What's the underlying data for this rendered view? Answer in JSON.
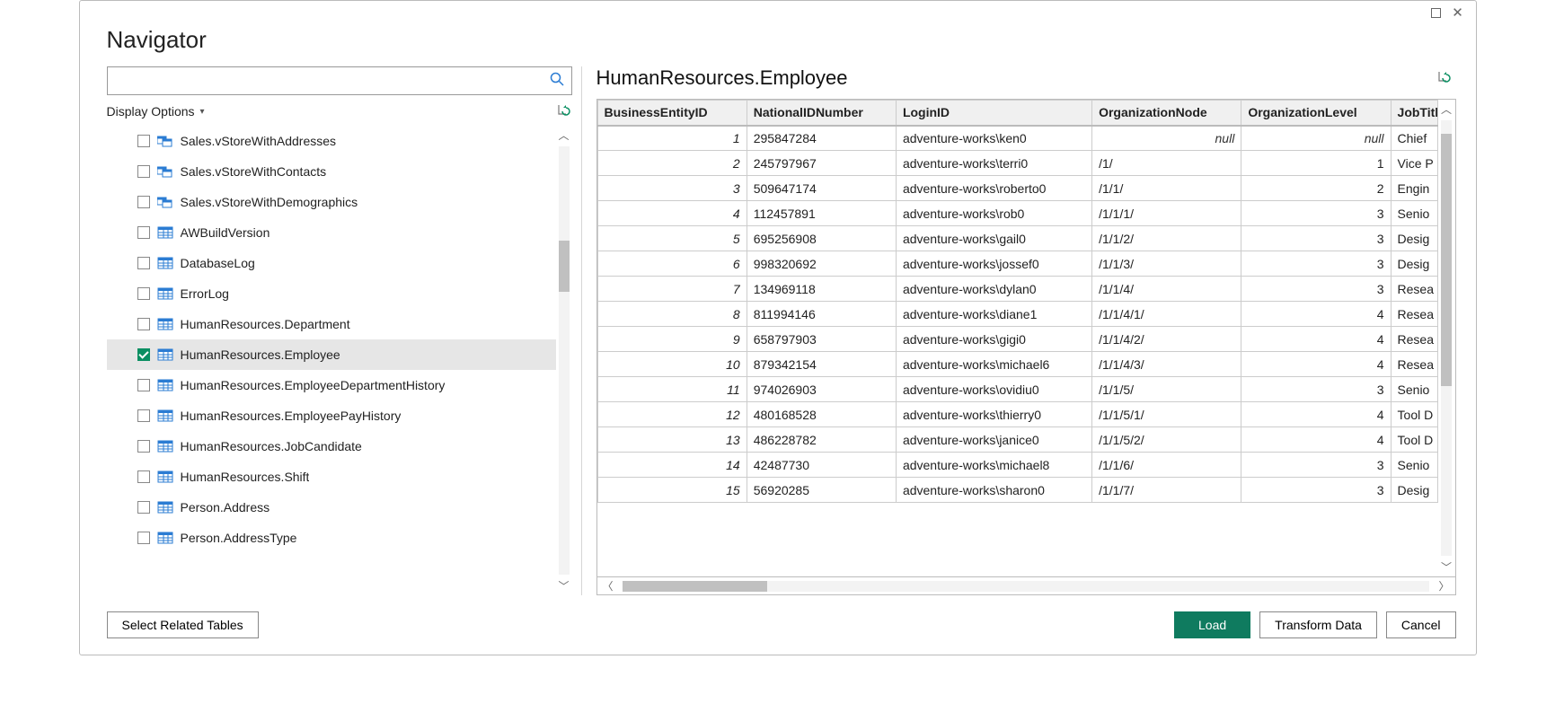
{
  "dialog": {
    "title": "Navigator"
  },
  "search": {
    "placeholder": ""
  },
  "displayOptions": {
    "label": "Display Options"
  },
  "tree": {
    "scroll": {
      "thumb_top_pct": 22,
      "thumb_height_pct": 12
    },
    "items": [
      {
        "label": "Sales.vStoreWithAddresses",
        "type": "view",
        "checked": false,
        "selected": false
      },
      {
        "label": "Sales.vStoreWithContacts",
        "type": "view",
        "checked": false,
        "selected": false
      },
      {
        "label": "Sales.vStoreWithDemographics",
        "type": "view",
        "checked": false,
        "selected": false
      },
      {
        "label": "AWBuildVersion",
        "type": "table",
        "checked": false,
        "selected": false
      },
      {
        "label": "DatabaseLog",
        "type": "table",
        "checked": false,
        "selected": false
      },
      {
        "label": "ErrorLog",
        "type": "table",
        "checked": false,
        "selected": false
      },
      {
        "label": "HumanResources.Department",
        "type": "table",
        "checked": false,
        "selected": false
      },
      {
        "label": "HumanResources.Employee",
        "type": "table",
        "checked": true,
        "selected": true
      },
      {
        "label": "HumanResources.EmployeeDepartmentHistory",
        "type": "table",
        "checked": false,
        "selected": false
      },
      {
        "label": "HumanResources.EmployeePayHistory",
        "type": "table",
        "checked": false,
        "selected": false
      },
      {
        "label": "HumanResources.JobCandidate",
        "type": "table",
        "checked": false,
        "selected": false
      },
      {
        "label": "HumanResources.Shift",
        "type": "table",
        "checked": false,
        "selected": false
      },
      {
        "label": "Person.Address",
        "type": "table",
        "checked": false,
        "selected": false
      },
      {
        "label": "Person.AddressType",
        "type": "table",
        "checked": false,
        "selected": false
      }
    ]
  },
  "preview": {
    "title": "HumanResources.Employee",
    "columns": [
      "BusinessEntityID",
      "NationalIDNumber",
      "LoginID",
      "OrganizationNode",
      "OrganizationLevel",
      "JobTitle"
    ],
    "rows": [
      {
        "BusinessEntityID": 1,
        "NationalIDNumber": "295847284",
        "LoginID": "adventure-works\\ken0",
        "OrganizationNode": "null",
        "OrganizationLevel": "null",
        "JobTitle": "Chief"
      },
      {
        "BusinessEntityID": 2,
        "NationalIDNumber": "245797967",
        "LoginID": "adventure-works\\terri0",
        "OrganizationNode": "/1/",
        "OrganizationLevel": 1,
        "JobTitle": "Vice P"
      },
      {
        "BusinessEntityID": 3,
        "NationalIDNumber": "509647174",
        "LoginID": "adventure-works\\roberto0",
        "OrganizationNode": "/1/1/",
        "OrganizationLevel": 2,
        "JobTitle": "Engin"
      },
      {
        "BusinessEntityID": 4,
        "NationalIDNumber": "112457891",
        "LoginID": "adventure-works\\rob0",
        "OrganizationNode": "/1/1/1/",
        "OrganizationLevel": 3,
        "JobTitle": "Senio"
      },
      {
        "BusinessEntityID": 5,
        "NationalIDNumber": "695256908",
        "LoginID": "adventure-works\\gail0",
        "OrganizationNode": "/1/1/2/",
        "OrganizationLevel": 3,
        "JobTitle": "Desig"
      },
      {
        "BusinessEntityID": 6,
        "NationalIDNumber": "998320692",
        "LoginID": "adventure-works\\jossef0",
        "OrganizationNode": "/1/1/3/",
        "OrganizationLevel": 3,
        "JobTitle": "Desig"
      },
      {
        "BusinessEntityID": 7,
        "NationalIDNumber": "134969118",
        "LoginID": "adventure-works\\dylan0",
        "OrganizationNode": "/1/1/4/",
        "OrganizationLevel": 3,
        "JobTitle": "Resea"
      },
      {
        "BusinessEntityID": 8,
        "NationalIDNumber": "811994146",
        "LoginID": "adventure-works\\diane1",
        "OrganizationNode": "/1/1/4/1/",
        "OrganizationLevel": 4,
        "JobTitle": "Resea"
      },
      {
        "BusinessEntityID": 9,
        "NationalIDNumber": "658797903",
        "LoginID": "adventure-works\\gigi0",
        "OrganizationNode": "/1/1/4/2/",
        "OrganizationLevel": 4,
        "JobTitle": "Resea"
      },
      {
        "BusinessEntityID": 10,
        "NationalIDNumber": "879342154",
        "LoginID": "adventure-works\\michael6",
        "OrganizationNode": "/1/1/4/3/",
        "OrganizationLevel": 4,
        "JobTitle": "Resea"
      },
      {
        "BusinessEntityID": 11,
        "NationalIDNumber": "974026903",
        "LoginID": "adventure-works\\ovidiu0",
        "OrganizationNode": "/1/1/5/",
        "OrganizationLevel": 3,
        "JobTitle": "Senio"
      },
      {
        "BusinessEntityID": 12,
        "NationalIDNumber": "480168528",
        "LoginID": "adventure-works\\thierry0",
        "OrganizationNode": "/1/1/5/1/",
        "OrganizationLevel": 4,
        "JobTitle": "Tool D"
      },
      {
        "BusinessEntityID": 13,
        "NationalIDNumber": "486228782",
        "LoginID": "adventure-works\\janice0",
        "OrganizationNode": "/1/1/5/2/",
        "OrganizationLevel": 4,
        "JobTitle": "Tool D"
      },
      {
        "BusinessEntityID": 14,
        "NationalIDNumber": "42487730",
        "LoginID": "adventure-works\\michael8",
        "OrganizationNode": "/1/1/6/",
        "OrganizationLevel": 3,
        "JobTitle": "Senio"
      },
      {
        "BusinessEntityID": 15,
        "NationalIDNumber": "56920285",
        "LoginID": "adventure-works\\sharon0",
        "OrganizationNode": "/1/1/7/",
        "OrganizationLevel": 3,
        "JobTitle": "Desig"
      }
    ],
    "vscroll": {
      "thumb_top_pct": 3,
      "thumb_height_pct": 58
    },
    "hscroll": {
      "thumb_left_pct": 0,
      "thumb_width_pct": 18
    }
  },
  "footer": {
    "selectRelated": "Select Related Tables",
    "load": "Load",
    "transform": "Transform Data",
    "cancel": "Cancel"
  },
  "colors": {
    "primary_button_bg": "#0f7b5f",
    "checkbox_checked_bg": "#0a8f62",
    "border": "#bbbbbb",
    "header_bg": "#f0f0f0",
    "selected_row_bg": "#e6e6e6",
    "search_icon": "#2b7cd3"
  }
}
